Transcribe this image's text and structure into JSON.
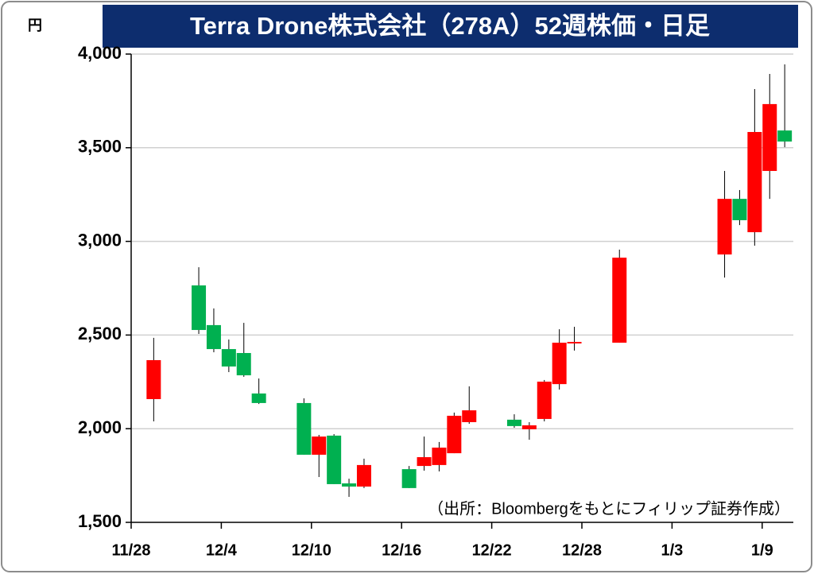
{
  "chart_data": {
    "type": "candlestick",
    "title": "Terra Drone株式会社（278A）52週株価・日足",
    "y_unit": "円",
    "note": "（出所：Bloombergをもとにフィリップ証券作成）",
    "x": [
      "11/29",
      "12/2",
      "12/3",
      "12/4",
      "12/5",
      "12/6",
      "12/9",
      "12/10",
      "12/11",
      "12/12",
      "12/13",
      "12/16",
      "12/17",
      "12/18",
      "12/19",
      "12/20",
      "12/23",
      "12/24",
      "12/25",
      "12/26",
      "12/27",
      "12/30",
      "1/6",
      "1/7",
      "1/8",
      "1/9",
      "1/10"
    ],
    "open": [
      2158,
      2765,
      2553,
      2425,
      2404,
      2188,
      2137,
      1861,
      1963,
      1708,
      1691,
      1784,
      1801,
      1806,
      1869,
      2035,
      2048,
      1997,
      2052,
      2238,
      2455,
      2459,
      2930,
      3227,
      3049,
      3376,
      3592
    ],
    "high": [
      2485,
      2862,
      2642,
      2476,
      2565,
      2268,
      2162,
      1967,
      1971,
      1733,
      1840,
      1801,
      1958,
      1929,
      2086,
      2226,
      2077,
      2035,
      2260,
      2531,
      2544,
      2956,
      3376,
      3274,
      3813,
      3894,
      3945
    ],
    "low": [
      2039,
      2506,
      2408,
      2302,
      2277,
      2132,
      1861,
      1742,
      1704,
      1636,
      1683,
      1683,
      1776,
      1772,
      1869,
      2026,
      2005,
      1941,
      2039,
      2209,
      2417,
      2459,
      2807,
      3087,
      2977,
      3227,
      3503
    ],
    "close": [
      2366,
      2527,
      2425,
      2332,
      2285,
      2137,
      1861,
      1958,
      1704,
      1691,
      1806,
      1683,
      1848,
      1899,
      2069,
      2098,
      2014,
      2018,
      2251,
      2459,
      2463,
      2913,
      3227,
      3113,
      3584,
      3733,
      3533
    ],
    "up_color": "#ff0000",
    "down_color": "#00b050",
    "ylim": [
      1500,
      4000
    ],
    "yticks": [
      {
        "value": 1500,
        "label": "1,500"
      },
      {
        "value": 2000,
        "label": "2,000"
      },
      {
        "value": 2500,
        "label": "2,500"
      },
      {
        "value": 3000,
        "label": "3,000"
      },
      {
        "value": 3500,
        "label": "3,500"
      },
      {
        "value": 4000,
        "label": "4,000"
      }
    ],
    "xticks": [
      "11/28",
      "12/4",
      "12/10",
      "12/16",
      "12/22",
      "12/28",
      "1/3",
      "1/9"
    ],
    "grid": true
  }
}
